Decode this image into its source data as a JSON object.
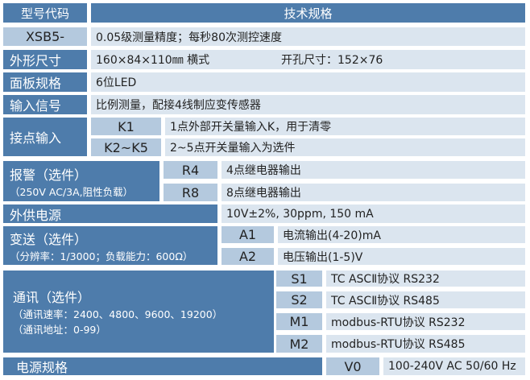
{
  "header": {
    "model_code": "型号代码",
    "spec": "技术规格"
  },
  "rows": {
    "model": {
      "label": "XSB5-",
      "value": "0.05级测量精度；每秒80次测控速度"
    },
    "size": {
      "label": "外形尺寸",
      "value": "160×84×110㎜ 横式",
      "cutout": "开孔尺寸：152×76"
    },
    "panel": {
      "label": "面板规格",
      "value": "6位LED"
    },
    "input": {
      "label": "输入信号",
      "value": "比例测量，配接4线制应变传感器"
    },
    "contact": {
      "label": "接点输入",
      "items": [
        {
          "code": "K1",
          "value": "1点外部开关量输入K，用于清零"
        },
        {
          "code": "K2~K5",
          "value": "2~5点开关量输入为选件"
        }
      ]
    },
    "alarm": {
      "label": "报警（选件）",
      "note": "（250V AC/3A,阻性负载）",
      "items": [
        {
          "code": "R4",
          "value": "4点继电器输出"
        },
        {
          "code": "R8",
          "value": "8点继电器输出"
        }
      ]
    },
    "ext_power": {
      "label": "外供电源",
      "value": "10V±2%, 30ppm, 150 mA"
    },
    "transmit": {
      "label": "变送（选件）",
      "note": "（分辨率：1/3000；负载能力：600Ω）",
      "items": [
        {
          "code": "A1",
          "value": "电流输出(4-20)mA"
        },
        {
          "code": "A2",
          "value": "电压输出(1-5)V"
        }
      ]
    },
    "comm": {
      "label": "通讯（选件）",
      "note1": "（通讯速率：2400、4800、9600、19200）",
      "note2": "（通讯地址：0-99）",
      "items": [
        {
          "code": "S1",
          "value": "TC  ASCⅡ协议 RS232"
        },
        {
          "code": "S2",
          "value": "TC  ASCⅡ协议 RS485"
        },
        {
          "code": "M1",
          "value": "modbus-RTU协议 RS232"
        },
        {
          "code": "M2",
          "value": "modbus-RTU协议 RS485"
        }
      ]
    },
    "power": {
      "label": "电源规格",
      "code": "V0",
      "value": "100-240V AC 50/60 Hz"
    }
  }
}
